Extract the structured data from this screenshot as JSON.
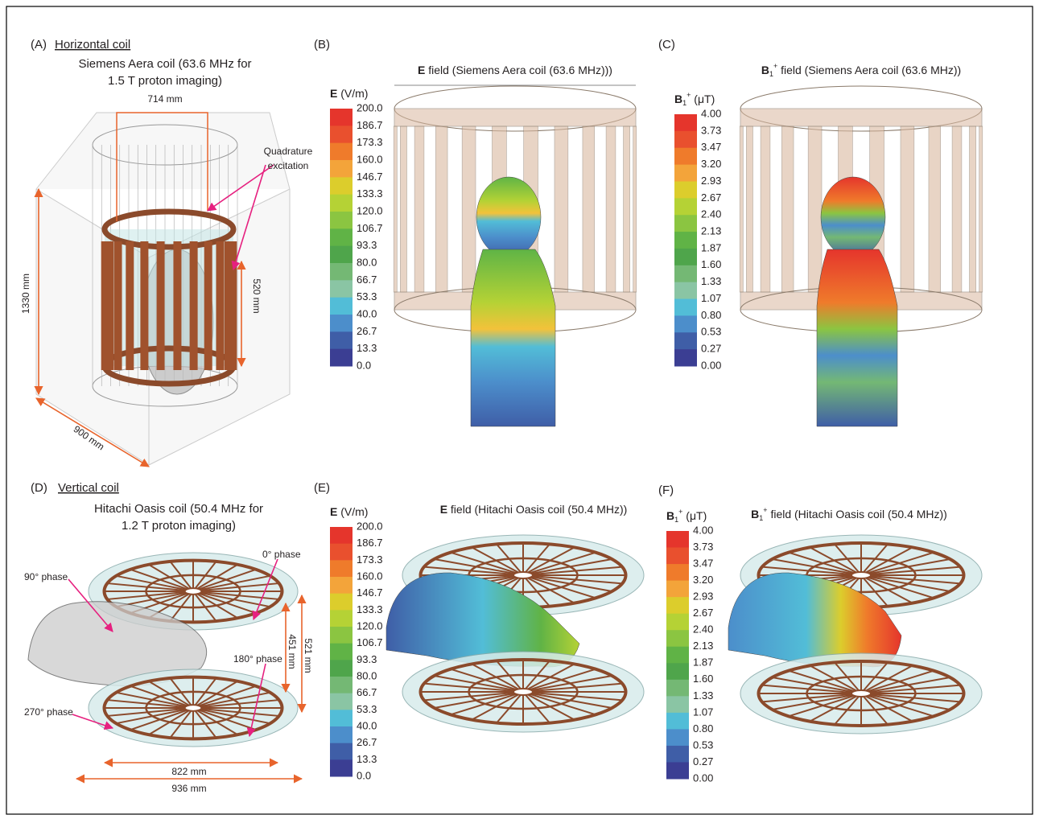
{
  "panels": [
    {
      "label": "(A)",
      "heading": "Horizontal coil",
      "subtitle": [
        "Siemens Aera coil (63.6 MHz for",
        "1.5 T proton imaging)"
      ],
      "annotations": [
        "714 mm",
        "Quadrature",
        "excitation",
        "1330 mm",
        "520 mm",
        "900 mm"
      ]
    },
    {
      "label": "(B)",
      "title": {
        "symbol": "E",
        "text": " field (Siemens Aera coil (63.6 MHz)))"
      },
      "colorbar": {
        "symbol": "E",
        "unit": " (V/m)",
        "ticks": [
          "200.0",
          "186.7",
          "173.3",
          "160.0",
          "146.7",
          "133.3",
          "120.0",
          "106.7",
          "93.3",
          "80.0",
          "66.7",
          "53.3",
          "40.0",
          "26.7",
          "13.3",
          "0.0"
        ],
        "colors": [
          "#e5352c",
          "#e9502e",
          "#ef7b2b",
          "#f3a43a",
          "#dccd2c",
          "#b5d235",
          "#8bc541",
          "#60b346",
          "#4fa54b",
          "#74b874",
          "#8ac5a4",
          "#52bdd7",
          "#4c8ecb",
          "#3f5ea7",
          "#3b3e93"
        ]
      }
    },
    {
      "label": "(C)",
      "title": {
        "symbol": "B",
        "subscript": "1",
        "superscript": "+",
        "text": "  field (Siemens Aera coil (63.6 MHz))"
      },
      "colorbar": {
        "symbol": "B",
        "subscript": "1",
        "superscript": "+",
        "unit": " (μT)",
        "ticks": [
          "4.00",
          "3.73",
          "3.47",
          "3.20",
          "2.93",
          "2.67",
          "2.40",
          "2.13",
          "1.87",
          "1.60",
          "1.33",
          "1.07",
          "0.80",
          "0.53",
          "0.27",
          "0.00"
        ],
        "colors": [
          "#e5352c",
          "#e9502e",
          "#ef7b2b",
          "#f3a43a",
          "#dccd2c",
          "#b5d235",
          "#8bc541",
          "#60b346",
          "#4fa54b",
          "#74b874",
          "#8ac5a4",
          "#52bdd7",
          "#4c8ecb",
          "#3f5ea7",
          "#3b3e93"
        ]
      }
    },
    {
      "label": "(D)",
      "heading": "Vertical coil",
      "subtitle": [
        "Hitachi Oasis coil (50.4 MHz for",
        "1.2 T proton imaging)"
      ],
      "annotations": [
        "0° phase",
        "90° phase",
        "180° phase",
        "270° phase",
        "451 mm",
        "521 mm",
        "822 mm",
        "936 mm"
      ]
    },
    {
      "label": "(E)",
      "title": {
        "symbol": "E",
        "text": " field (Hitachi Oasis coil (50.4 MHz))"
      },
      "colorbar": {
        "symbol": "E",
        "unit": " (V/m)",
        "ticks": [
          "200.0",
          "186.7",
          "173.3",
          "160.0",
          "146.7",
          "133.3",
          "120.0",
          "106.7",
          "93.3",
          "80.0",
          "66.7",
          "53.3",
          "40.0",
          "26.7",
          "13.3",
          "0.0"
        ],
        "colors": [
          "#e5352c",
          "#e9502e",
          "#ef7b2b",
          "#f3a43a",
          "#dccd2c",
          "#b5d235",
          "#8bc541",
          "#60b346",
          "#4fa54b",
          "#74b874",
          "#8ac5a4",
          "#52bdd7",
          "#4c8ecb",
          "#3f5ea7",
          "#3b3e93"
        ]
      }
    },
    {
      "label": "(F)",
      "title": {
        "symbol": "B",
        "subscript": "1",
        "superscript": "+",
        "text": " field (Hitachi Oasis coil (50.4 MHz))"
      },
      "colorbar": {
        "symbol": "B",
        "subscript": "1",
        "superscript": "+",
        "unit": " (μT)",
        "ticks": [
          "4.00",
          "3.73",
          "3.47",
          "3.20",
          "2.93",
          "2.67",
          "2.40",
          "2.13",
          "1.87",
          "1.60",
          "1.33",
          "1.07",
          "0.80",
          "0.53",
          "0.27",
          "0.00"
        ],
        "colors": [
          "#e5352c",
          "#e9502e",
          "#ef7b2b",
          "#f3a43a",
          "#dccd2c",
          "#b5d235",
          "#8bc541",
          "#60b346",
          "#4fa54b",
          "#74b874",
          "#8ac5a4",
          "#52bdd7",
          "#4c8ecb",
          "#3f5ea7",
          "#3b3e93"
        ]
      }
    }
  ]
}
